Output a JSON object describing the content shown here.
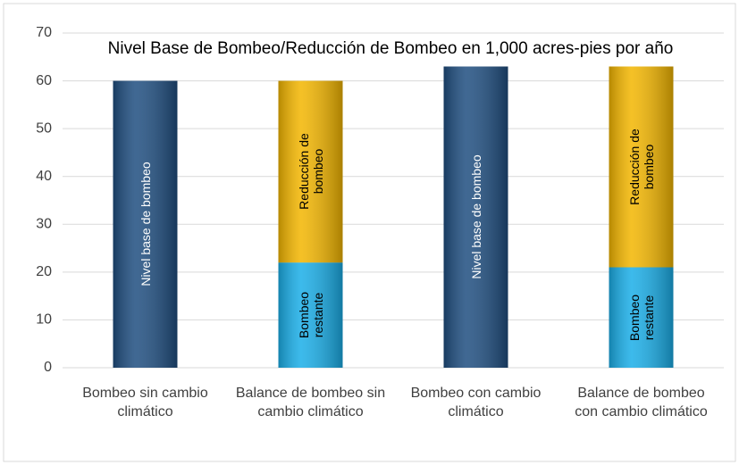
{
  "chart_data": {
    "type": "stacked_bar",
    "title": "Nivel Base de Bombeo/Reducción de Bombeo en 1,000 acres-pies por año",
    "categories": [
      "Bombeo sin cambio climático",
      "Balance de bombeo sin cambio climático",
      "Bombeo con cambio climático",
      "Balance de bombeo con cambio climático"
    ],
    "series": [
      {
        "name": "Nivel base de bombeo",
        "color": "#1f4e80",
        "values": [
          60,
          null,
          63,
          null
        ]
      },
      {
        "name": "Bombeo restante",
        "color": "#1aaee8",
        "values": [
          null,
          22,
          null,
          21
        ]
      },
      {
        "name": "Reducción de bombeo",
        "color": "#f3b600",
        "values": [
          null,
          38,
          null,
          42
        ]
      }
    ],
    "ylim": [
      0,
      70
    ],
    "yticks": [
      0,
      10,
      20,
      30,
      40,
      50,
      60,
      70
    ],
    "grid": true
  }
}
